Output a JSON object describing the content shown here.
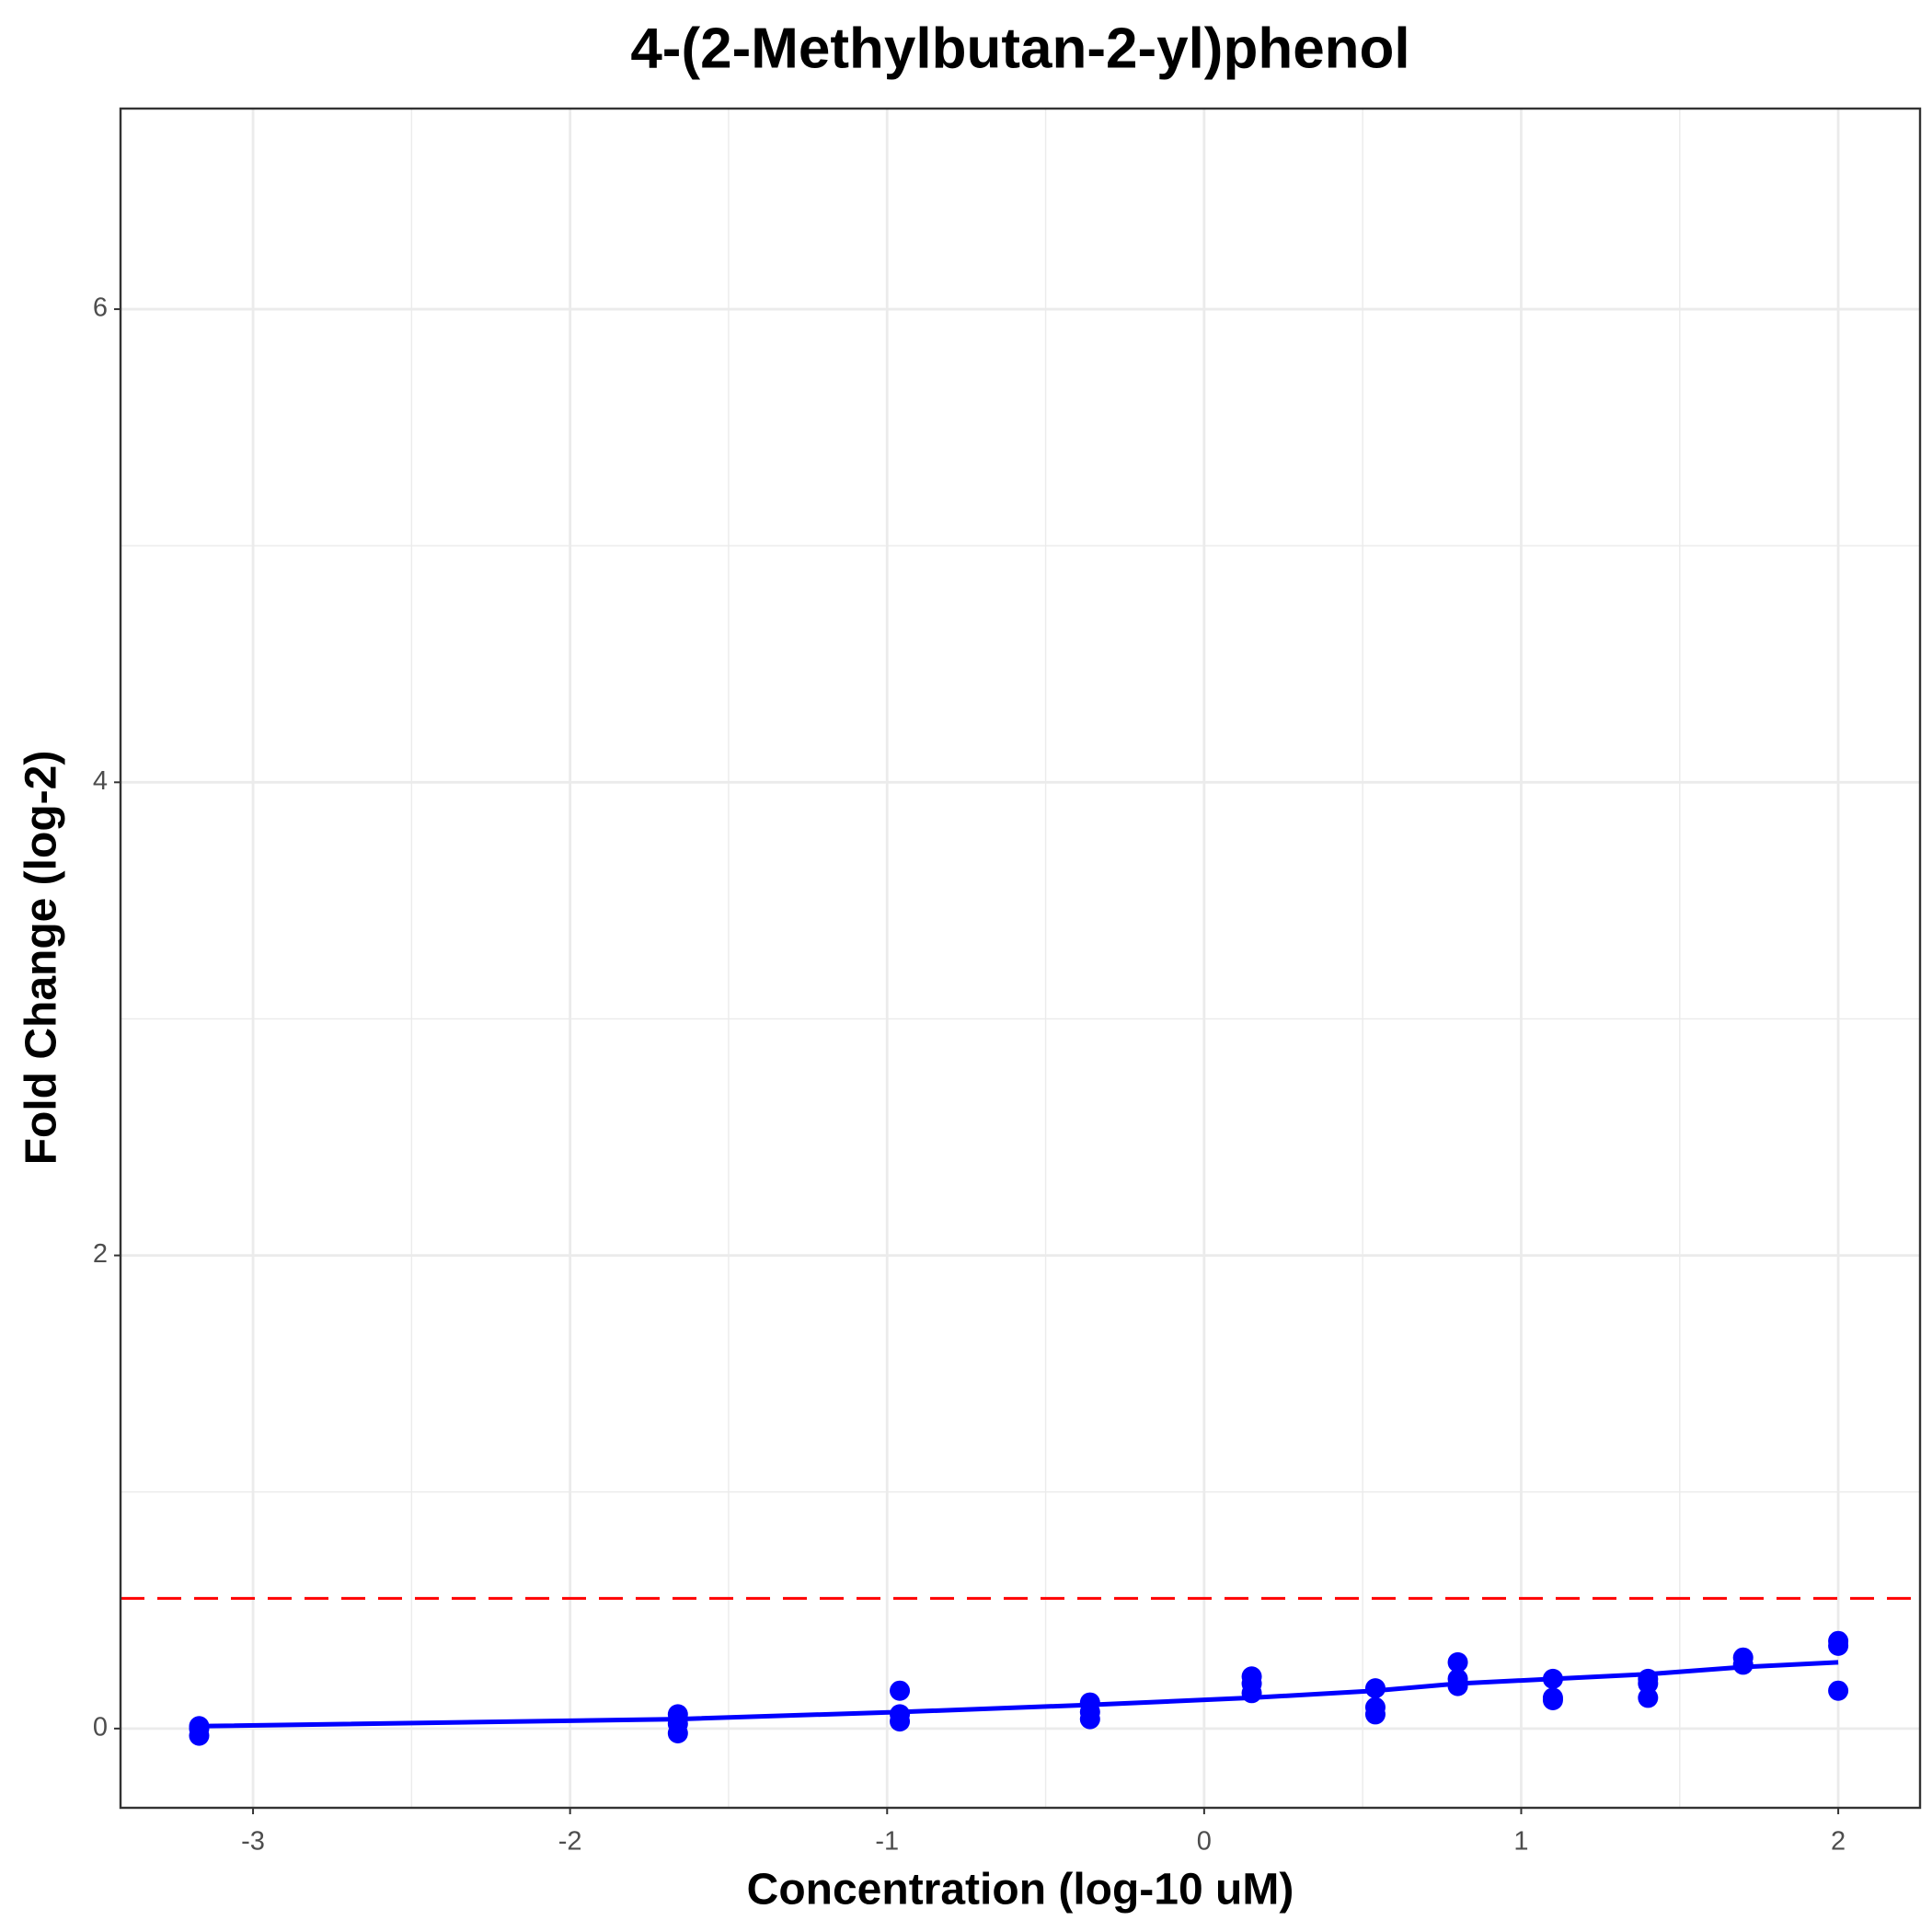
{
  "chart_data": {
    "type": "scatter",
    "title": "4-(2-Methylbutan-2-yl)phenol",
    "x_label": "Concentration (log-10 uM)",
    "y_label": "Fold Change (log-2)",
    "xlim": [
      -3.418,
      2.258
    ],
    "ylim": [
      -0.335,
      6.848
    ],
    "xticks": [
      -3,
      -2,
      -1,
      0,
      1,
      2
    ],
    "yticks": [
      0,
      2,
      4,
      6
    ],
    "grid": true,
    "reference_line": {
      "value": 0.55,
      "color": "#ff0000",
      "dash": true
    },
    "series": [
      {
        "mode": "points",
        "color": "#0000ff",
        "x": [
          -3.17,
          -3.17,
          -3.17,
          -1.66,
          -1.66,
          -1.66,
          -0.96,
          -0.96,
          -0.96,
          -0.36,
          -0.36,
          -0.36,
          0.15,
          0.15,
          0.15,
          0.54,
          0.54,
          0.54,
          0.8,
          0.8,
          0.8,
          1.1,
          1.1,
          1.1,
          1.4,
          1.4,
          1.4,
          1.7,
          1.7,
          2.0,
          2.0,
          2.0
        ],
        "values": [
          0.01,
          -0.03,
          0.0,
          0.06,
          0.02,
          -0.02,
          0.16,
          0.06,
          0.03,
          0.11,
          0.07,
          0.04,
          0.22,
          0.19,
          0.15,
          0.17,
          0.09,
          0.06,
          0.28,
          0.21,
          0.18,
          0.21,
          0.13,
          0.12,
          0.21,
          0.19,
          0.13,
          0.3,
          0.27,
          0.37,
          0.35,
          0.16
        ]
      },
      {
        "mode": "line",
        "color": "#0000ff",
        "x": [
          -3.17,
          -1.66,
          -0.96,
          -0.36,
          0.15,
          0.54,
          0.8,
          1.1,
          1.4,
          1.7,
          2.0
        ],
        "values": [
          0.01,
          0.04,
          0.07,
          0.1,
          0.13,
          0.16,
          0.19,
          0.21,
          0.23,
          0.26,
          0.28
        ]
      }
    ]
  }
}
